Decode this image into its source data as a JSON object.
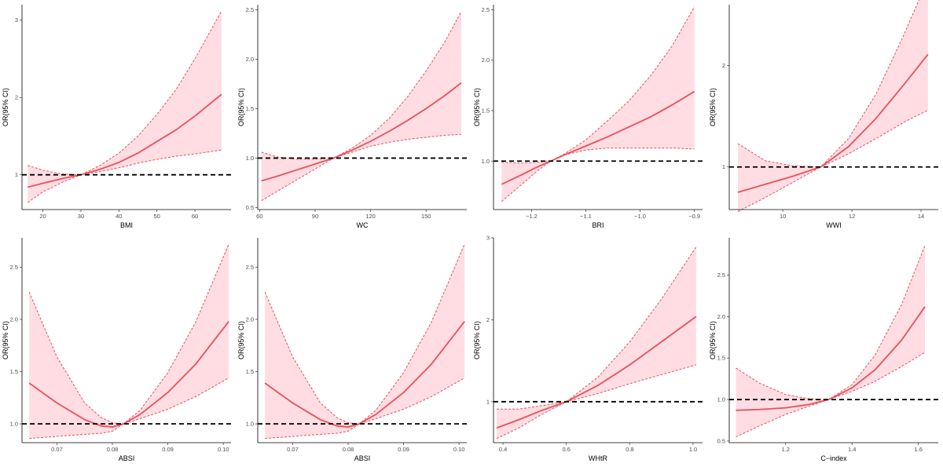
{
  "figure": {
    "background": "#ffffff"
  },
  "style": {
    "line_color": "#e8505b",
    "band_color": "#ffdde3",
    "reference_color": "#000000"
  },
  "chart_data": [
    {
      "id": "bmi",
      "type": "line",
      "xlabel": "BMI",
      "ylabel": "OR(95% CI)",
      "xlim": [
        14.5,
        69.5
      ],
      "ylim": [
        0.55,
        3.2
      ],
      "xticks": [
        20,
        30,
        40,
        50,
        60
      ],
      "xtick_labels": [
        "20",
        "30",
        "40",
        "50",
        "60"
      ],
      "yticks": [
        1,
        2,
        3
      ],
      "ytick_labels": [
        "1",
        "2",
        "3"
      ],
      "reference_y": 1,
      "x": [
        16,
        20,
        25,
        30,
        35,
        40,
        45,
        50,
        55,
        60,
        67
      ],
      "or": [
        0.84,
        0.89,
        0.95,
        1.0,
        1.07,
        1.16,
        1.28,
        1.43,
        1.58,
        1.76,
        2.04
      ],
      "lower": [
        0.64,
        0.78,
        0.9,
        1.0,
        1.04,
        1.09,
        1.15,
        1.2,
        1.24,
        1.27,
        1.32
      ],
      "upper": [
        1.12,
        1.06,
        1.01,
        1.0,
        1.12,
        1.28,
        1.5,
        1.78,
        2.1,
        2.5,
        3.12
      ]
    },
    {
      "id": "wc",
      "type": "line",
      "xlabel": "WC",
      "ylabel": "OR(95% CI)",
      "xlim": [
        59,
        172
      ],
      "ylim": [
        0.48,
        2.55
      ],
      "xticks": [
        60,
        90,
        120,
        150
      ],
      "xtick_labels": [
        "60",
        "90",
        "120",
        "150"
      ],
      "yticks": [
        0.5,
        1.0,
        1.5,
        2.0,
        2.5
      ],
      "ytick_labels": [
        "0.5",
        "1.0",
        "1.5",
        "2.0",
        "2.5"
      ],
      "reference_y": 1,
      "x": [
        61,
        70,
        80,
        90,
        100,
        110,
        120,
        130,
        140,
        150,
        160,
        169
      ],
      "or": [
        0.77,
        0.82,
        0.88,
        0.94,
        1.0,
        1.08,
        1.17,
        1.27,
        1.38,
        1.5,
        1.63,
        1.76
      ],
      "lower": [
        0.57,
        0.67,
        0.78,
        0.89,
        1.0,
        1.06,
        1.12,
        1.16,
        1.19,
        1.21,
        1.23,
        1.24
      ],
      "upper": [
        1.06,
        1.01,
        0.99,
        0.99,
        1.0,
        1.1,
        1.23,
        1.4,
        1.62,
        1.88,
        2.17,
        2.48
      ]
    },
    {
      "id": "bri",
      "type": "line",
      "xlabel": "BRI",
      "ylabel": "OR(95% CI)",
      "xlim": [
        -1.27,
        -0.885
      ],
      "ylim": [
        0.52,
        2.55
      ],
      "xticks": [
        -1.2,
        -1.1,
        -1.0,
        -0.9
      ],
      "xtick_labels": [
        "−1.2",
        "−1.1",
        "−1.0",
        "−0.9"
      ],
      "yticks": [
        1.0,
        1.5,
        2.0,
        2.5
      ],
      "ytick_labels": [
        "1.0",
        "1.5",
        "2.0",
        "2.5"
      ],
      "reference_y": 1,
      "x": [
        -1.255,
        -1.22,
        -1.19,
        -1.165,
        -1.14,
        -1.1,
        -1.06,
        -1.02,
        -0.98,
        -0.94,
        -0.9
      ],
      "or": [
        0.77,
        0.86,
        0.94,
        1.0,
        1.06,
        1.15,
        1.24,
        1.34,
        1.44,
        1.56,
        1.69
      ],
      "lower": [
        0.6,
        0.76,
        0.9,
        1.0,
        1.06,
        1.11,
        1.13,
        1.13,
        1.13,
        1.13,
        1.12
      ],
      "upper": [
        0.99,
        0.98,
        0.99,
        1.0,
        1.07,
        1.21,
        1.4,
        1.6,
        1.85,
        2.15,
        2.53
      ]
    },
    {
      "id": "wwi",
      "type": "line",
      "xlabel": "WWI",
      "ylabel": "OR(95% CI)",
      "xlim": [
        8.45,
        14.5
      ],
      "ylim": [
        0.58,
        2.6
      ],
      "xticks": [
        10,
        12,
        14
      ],
      "xtick_labels": [
        "10",
        "12",
        "14"
      ],
      "yticks": [
        1,
        2
      ],
      "ytick_labels": [
        "1",
        "2"
      ],
      "reference_y": 1,
      "x": [
        8.7,
        9.5,
        10.3,
        11.1,
        11.9,
        12.7,
        13.5,
        14.2
      ],
      "or": [
        0.75,
        0.83,
        0.91,
        1.0,
        1.2,
        1.48,
        1.81,
        2.11
      ],
      "lower": [
        0.56,
        0.7,
        0.85,
        1.0,
        1.13,
        1.28,
        1.44,
        1.56
      ],
      "upper": [
        1.23,
        1.06,
        1.01,
        1.0,
        1.28,
        1.72,
        2.3,
        2.85
      ]
    },
    {
      "id": "absi-1",
      "type": "line",
      "xlabel": "ABSI",
      "ylabel": "OR(95% CI)",
      "xlim": [
        0.0637,
        0.1014
      ],
      "ylim": [
        0.82,
        2.78
      ],
      "xticks": [
        0.07,
        0.08,
        0.09,
        0.1
      ],
      "xtick_labels": [
        "0.07",
        "0.08",
        "0.09",
        "0.10"
      ],
      "yticks": [
        1.0,
        1.5,
        2.0,
        2.5
      ],
      "ytick_labels": [
        "1.0",
        "1.5",
        "2.0",
        "2.5"
      ],
      "reference_y": 1,
      "x": [
        0.065,
        0.07,
        0.075,
        0.078,
        0.08,
        0.082,
        0.085,
        0.09,
        0.095,
        0.101
      ],
      "or": [
        1.39,
        1.2,
        1.04,
        0.98,
        0.97,
        1.0,
        1.09,
        1.3,
        1.57,
        1.98
      ],
      "lower": [
        0.86,
        0.88,
        0.9,
        0.91,
        0.93,
        1.0,
        1.05,
        1.14,
        1.26,
        1.44
      ],
      "upper": [
        2.26,
        1.64,
        1.2,
        1.06,
        1.01,
        1.0,
        1.13,
        1.49,
        1.97,
        2.72
      ]
    },
    {
      "id": "absi-2",
      "type": "line",
      "xlabel": "ABSI",
      "ylabel": "OR(95% CI)",
      "xlim": [
        0.0637,
        0.1014
      ],
      "ylim": [
        0.82,
        2.78
      ],
      "xticks": [
        0.07,
        0.08,
        0.09,
        0.1
      ],
      "xtick_labels": [
        "0.07",
        "0.08",
        "0.09",
        "0.10"
      ],
      "yticks": [
        1.0,
        1.5,
        2.0,
        2.5
      ],
      "ytick_labels": [
        "1.0",
        "1.5",
        "2.0",
        "2.5"
      ],
      "reference_y": 1,
      "x": [
        0.065,
        0.07,
        0.075,
        0.078,
        0.08,
        0.082,
        0.085,
        0.09,
        0.095,
        0.101
      ],
      "or": [
        1.39,
        1.2,
        1.04,
        0.98,
        0.97,
        1.0,
        1.09,
        1.3,
        1.57,
        1.98
      ],
      "lower": [
        0.86,
        0.88,
        0.9,
        0.91,
        0.93,
        1.0,
        1.05,
        1.14,
        1.26,
        1.44
      ],
      "upper": [
        2.26,
        1.64,
        1.2,
        1.06,
        1.01,
        1.0,
        1.13,
        1.49,
        1.97,
        2.72
      ]
    },
    {
      "id": "whtr",
      "type": "line",
      "xlabel": "WHtR",
      "ylabel": "OR(95% CI)",
      "xlim": [
        0.37,
        1.03
      ],
      "ylim": [
        0.5,
        3.0
      ],
      "xticks": [
        0.4,
        0.6,
        0.8,
        1.0
      ],
      "xtick_labels": [
        "0.4",
        "0.6",
        "0.8",
        "1.0"
      ],
      "yticks": [
        1,
        2,
        3
      ],
      "ytick_labels": [
        "1",
        "2",
        "3"
      ],
      "reference_y": 1,
      "x": [
        0.38,
        0.45,
        0.52,
        0.6,
        0.7,
        0.8,
        0.9,
        1.01
      ],
      "or": [
        0.68,
        0.78,
        0.89,
        1.0,
        1.2,
        1.45,
        1.73,
        2.04
      ],
      "lower": [
        0.55,
        0.68,
        0.84,
        1.0,
        1.1,
        1.22,
        1.33,
        1.45
      ],
      "upper": [
        0.91,
        0.91,
        0.95,
        1.0,
        1.3,
        1.73,
        2.25,
        2.89
      ]
    },
    {
      "id": "c-index",
      "type": "line",
      "xlabel": "C−index",
      "ylabel": "OR(95% CI)",
      "xlim": [
        1.03,
        1.66
      ],
      "ylim": [
        0.48,
        2.95
      ],
      "xticks": [
        1.2,
        1.4,
        1.6
      ],
      "xtick_labels": [
        "1.2",
        "1.4",
        "1.6"
      ],
      "yticks": [
        0.5,
        1.0,
        1.5,
        2.0,
        2.5
      ],
      "ytick_labels": [
        "0.5",
        "1.0",
        "1.5",
        "2.0",
        "2.5"
      ],
      "reference_y": 1,
      "x": [
        1.05,
        1.12,
        1.2,
        1.27,
        1.33,
        1.4,
        1.47,
        1.55,
        1.62
      ],
      "or": [
        0.87,
        0.88,
        0.9,
        0.94,
        1.0,
        1.14,
        1.36,
        1.72,
        2.12
      ],
      "lower": [
        0.55,
        0.68,
        0.82,
        0.92,
        1.0,
        1.1,
        1.22,
        1.4,
        1.57
      ],
      "upper": [
        1.38,
        1.2,
        1.06,
        1.01,
        1.0,
        1.18,
        1.54,
        2.15,
        2.86
      ]
    }
  ]
}
